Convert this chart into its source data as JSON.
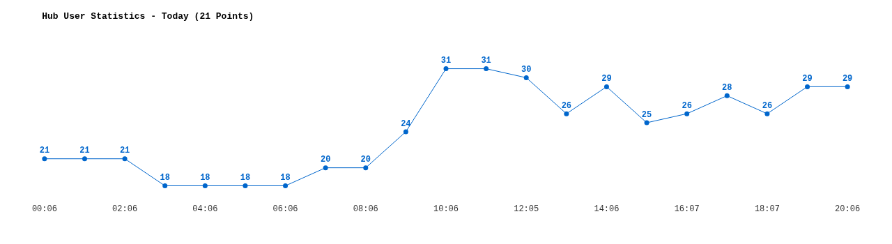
{
  "chart_data": {
    "type": "line",
    "title": "Hub User Statistics - Today (21 Points)",
    "categories": [
      "00:06",
      null,
      "02:06",
      null,
      "04:06",
      null,
      "06:06",
      null,
      "08:06",
      null,
      "10:06",
      null,
      "12:05",
      null,
      "14:06",
      null,
      "16:07",
      null,
      "18:07",
      null,
      "20:06"
    ],
    "series": [
      {
        "color": "#0066cc",
        "values": [
          21,
          21,
          21,
          18,
          18,
          18,
          18,
          20,
          20,
          24,
          31,
          31,
          30,
          26,
          29,
          25,
          26,
          28,
          26,
          29,
          29
        ]
      }
    ],
    "data_labels": true,
    "marker": "circle",
    "line_style": "solid"
  }
}
